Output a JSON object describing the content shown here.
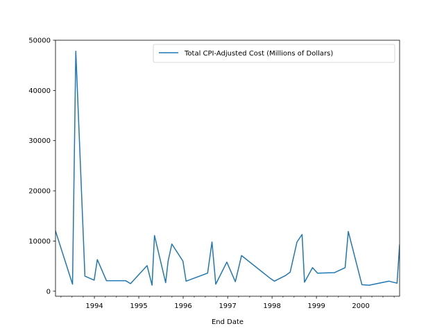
{
  "chart_data": {
    "type": "line",
    "xlabel": "End Date",
    "ylabel": "",
    "xlim": [
      "1993-02-15",
      "2000-11-15"
    ],
    "ylim": [
      -1000,
      50000
    ],
    "x_ticks": [
      "1994",
      "1995",
      "1996",
      "1997",
      "1998",
      "1999",
      "2000"
    ],
    "y_ticks": [
      0,
      10000,
      20000,
      30000,
      40000,
      50000
    ],
    "legend_position": "upper right",
    "grid": false,
    "series": [
      {
        "name": "Total CPI-Adjusted Cost (Millions of Dollars)",
        "color": "#1f77b4",
        "points": [
          {
            "x": "1993-02-15",
            "y": 12000
          },
          {
            "x": "1993-07-05",
            "y": 1400
          },
          {
            "x": "1993-08-01",
            "y": 47800
          },
          {
            "x": "1993-10-15",
            "y": 3000
          },
          {
            "x": "1993-12-30",
            "y": 2200
          },
          {
            "x": "1994-01-25",
            "y": 6300
          },
          {
            "x": "1994-04-10",
            "y": 2100
          },
          {
            "x": "1994-09-15",
            "y": 2100
          },
          {
            "x": "1994-10-25",
            "y": 1500
          },
          {
            "x": "1995-03-10",
            "y": 5100
          },
          {
            "x": "1995-04-20",
            "y": 1200
          },
          {
            "x": "1995-05-10",
            "y": 11100
          },
          {
            "x": "1995-08-10",
            "y": 1700
          },
          {
            "x": "1995-08-30",
            "y": 6000
          },
          {
            "x": "1995-09-30",
            "y": 9400
          },
          {
            "x": "1995-12-30",
            "y": 6000
          },
          {
            "x": "1996-01-25",
            "y": 2000
          },
          {
            "x": "1996-07-20",
            "y": 3600
          },
          {
            "x": "1996-08-25",
            "y": 9800
          },
          {
            "x": "1996-09-25",
            "y": 1400
          },
          {
            "x": "1996-12-25",
            "y": 5800
          },
          {
            "x": "1997-03-05",
            "y": 1900
          },
          {
            "x": "1997-04-25",
            "y": 7100
          },
          {
            "x": "1997-12-15",
            "y": 2600
          },
          {
            "x": "1998-01-20",
            "y": 2000
          },
          {
            "x": "1998-04-20",
            "y": 3100
          },
          {
            "x": "1998-05-30",
            "y": 3800
          },
          {
            "x": "1998-07-25",
            "y": 9800
          },
          {
            "x": "1998-09-05",
            "y": 11300
          },
          {
            "x": "1998-09-25",
            "y": 1800
          },
          {
            "x": "1998-11-30",
            "y": 4700
          },
          {
            "x": "1999-01-10",
            "y": 3600
          },
          {
            "x": "1999-05-30",
            "y": 3700
          },
          {
            "x": "1999-08-25",
            "y": 4700
          },
          {
            "x": "1999-09-20",
            "y": 11900
          },
          {
            "x": "2000-01-10",
            "y": 1300
          },
          {
            "x": "2000-03-10",
            "y": 1200
          },
          {
            "x": "2000-08-20",
            "y": 2000
          },
          {
            "x": "2000-10-25",
            "y": 1600
          },
          {
            "x": "2000-11-15",
            "y": 9200
          }
        ]
      }
    ]
  }
}
